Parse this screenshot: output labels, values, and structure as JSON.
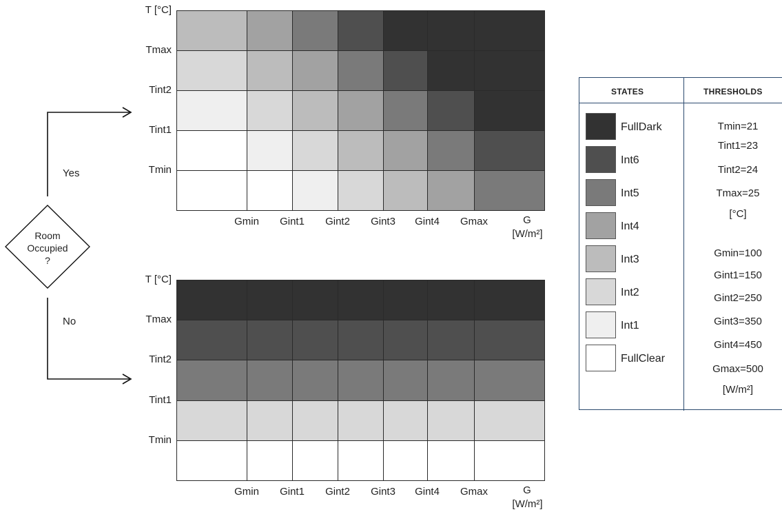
{
  "flowchart": {
    "decision": [
      "Room",
      "Occupied",
      "?"
    ],
    "yes_label": "Yes",
    "no_label": "No"
  },
  "charts": [
    {
      "id": "occupied",
      "y_axis_title": "T [°C]",
      "y_labels": [
        "Tmax",
        "Tint2",
        "Tint1",
        "Tmin"
      ],
      "x_labels": [
        "Gmin",
        "Gint1",
        "Gint2",
        "Gint3",
        "Gint4",
        "Gmax"
      ],
      "x_axis_title_line1": "G",
      "x_axis_title_line2": "[W/m²]",
      "matrix_states": [
        [
          "Int3",
          "Int4",
          "Int5",
          "Int6",
          "FullDark",
          "FullDark",
          "FullDark"
        ],
        [
          "Int2",
          "Int3",
          "Int4",
          "Int5",
          "Int6",
          "FullDark",
          "FullDark"
        ],
        [
          "Int1",
          "Int2",
          "Int3",
          "Int4",
          "Int5",
          "Int6",
          "FullDark"
        ],
        [
          "FullClear",
          "Int1",
          "Int2",
          "Int3",
          "Int4",
          "Int5",
          "Int6"
        ],
        [
          "FullClear",
          "FullClear",
          "Int1",
          "Int2",
          "Int3",
          "Int4",
          "Int5"
        ]
      ]
    },
    {
      "id": "unoccupied",
      "y_axis_title": "T [°C]",
      "y_labels": [
        "Tmax",
        "Tint2",
        "Tint1",
        "Tmin"
      ],
      "x_labels": [
        "Gmin",
        "Gint1",
        "Gint2",
        "Gint3",
        "Gint4",
        "Gmax"
      ],
      "x_axis_title_line1": "G",
      "x_axis_title_line2": "[W/m²]",
      "matrix_states": [
        [
          "FullDark",
          "FullDark",
          "FullDark",
          "FullDark",
          "FullDark",
          "FullDark",
          "FullDark"
        ],
        [
          "Int6",
          "Int6",
          "Int6",
          "Int6",
          "Int6",
          "Int6",
          "Int6"
        ],
        [
          "Int5",
          "Int5",
          "Int5",
          "Int5",
          "Int5",
          "Int5",
          "Int5"
        ],
        [
          "Int2",
          "Int2",
          "Int2",
          "Int2",
          "Int2",
          "Int2",
          "Int2"
        ],
        [
          "FullClear",
          "FullClear",
          "FullClear",
          "FullClear",
          "FullClear",
          "FullClear",
          "FullClear"
        ]
      ]
    }
  ],
  "legend": {
    "states_header": "STATES",
    "thresholds_header": "THRESHOLDS",
    "states": [
      {
        "name": "FullDark",
        "color": "#323232"
      },
      {
        "name": "Int6",
        "color": "#4f4f4f"
      },
      {
        "name": "Int5",
        "color": "#7a7a7a"
      },
      {
        "name": "Int4",
        "color": "#a2a2a2"
      },
      {
        "name": "Int3",
        "color": "#bcbcbc"
      },
      {
        "name": "Int2",
        "color": "#d8d8d8"
      },
      {
        "name": "Int1",
        "color": "#efefef"
      },
      {
        "name": "FullClear",
        "color": "#ffffff"
      }
    ],
    "thresholds": [
      "Tmin=21",
      "Tint1=23",
      "Tint2=24",
      "Tmax=25",
      "[°C]",
      "Gmin=100",
      "Gint1=150",
      "Gint2=250",
      "Gint3=350",
      "Gint4=450",
      "Gmax=500",
      "[W/m²]"
    ]
  }
}
